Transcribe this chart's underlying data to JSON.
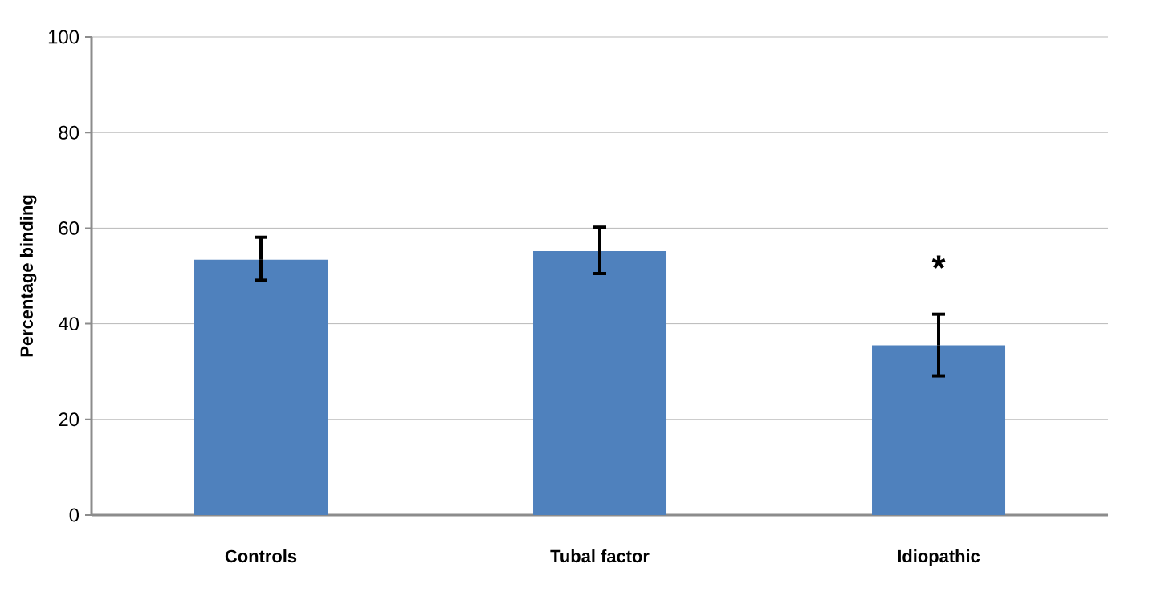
{
  "chart_data": {
    "type": "bar",
    "ylabel": "Percentage binding",
    "categories": [
      "Controls",
      "Tubal factor",
      "Idiopathic"
    ],
    "values": [
      53.4,
      55.2,
      35.5
    ],
    "errors": [
      [
        49.1,
        58.1
      ],
      [
        50.5,
        60.2
      ],
      [
        29.1,
        42.0
      ]
    ],
    "color": "#4f81bd",
    "ylim": [
      0,
      100
    ],
    "yticks": [
      0,
      20,
      40,
      60,
      80,
      100
    ],
    "grid": "y",
    "annotations": [
      "*"
    ]
  }
}
